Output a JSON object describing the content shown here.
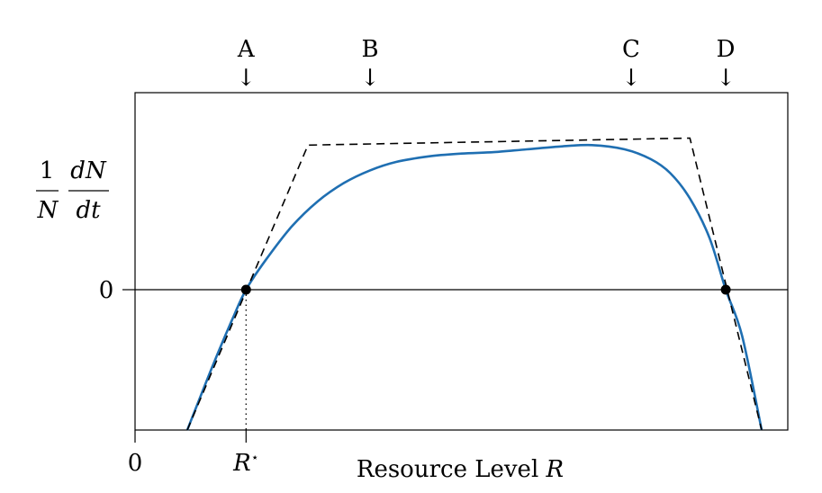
{
  "chart_data": {
    "type": "line",
    "title": "",
    "xlabel": "Resource Level",
    "xlabel_symbol": "R",
    "ylabel": {
      "numerator_left": "1",
      "denominator_left": "N",
      "numerator_right": "dN",
      "denominator_right": "dt"
    },
    "x_origin_label": "0",
    "y_zero_label": "0",
    "r_star_label": "R",
    "r_star_sup": "⋆",
    "xlim": [
      0,
      10
    ],
    "ylim": [
      -1,
      1
    ],
    "grid": false,
    "legend": "none",
    "markers": [
      {
        "label": "A",
        "x": 1.7
      },
      {
        "label": "B",
        "x": 3.6
      },
      {
        "label": "C",
        "x": 7.6
      },
      {
        "label": "D",
        "x": 9.05
      }
    ],
    "arrow_glyph": "↓",
    "equilibria": [
      {
        "x": 1.7,
        "y": 0
      },
      {
        "x": 9.05,
        "y": 0
      }
    ],
    "series": [
      {
        "style": "solid",
        "color": "#1f6fb2",
        "x": [
          0.8,
          1.2,
          1.5,
          1.7,
          2.0,
          2.4,
          2.8,
          3.2,
          3.6,
          4.0,
          4.5,
          5.0,
          5.5,
          6.0,
          6.5,
          7.0,
          7.5,
          7.9,
          8.2,
          8.5,
          8.8,
          9.05,
          9.3,
          9.6
        ],
        "y": [
          -1.0,
          -0.53,
          -0.2,
          0.0,
          0.21,
          0.45,
          0.63,
          0.76,
          0.85,
          0.91,
          0.95,
          0.97,
          0.98,
          1.0,
          1.02,
          1.03,
          1.0,
          0.93,
          0.83,
          0.65,
          0.37,
          0.0,
          -0.33,
          -1.0
        ]
      },
      {
        "style": "dashed",
        "color": "#000000",
        "x": [
          0.8,
          2.65,
          8.5,
          9.6
        ],
        "y": [
          -1.0,
          1.03,
          1.08,
          -1.0
        ]
      }
    ]
  }
}
